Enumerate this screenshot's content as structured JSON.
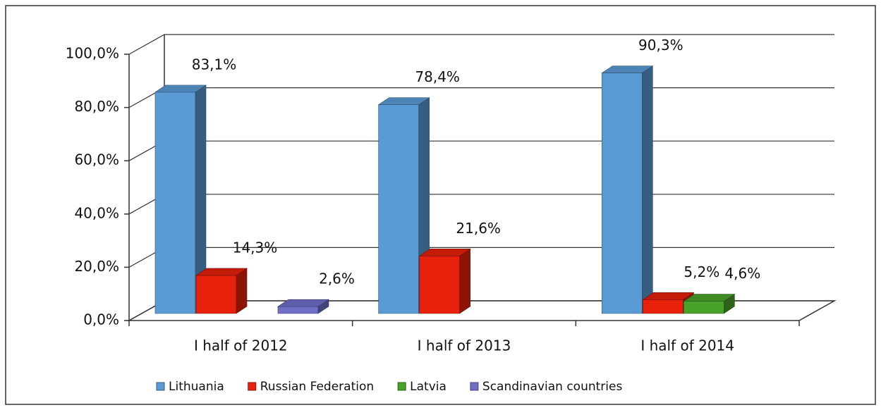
{
  "chart_data": {
    "type": "bar3d",
    "categories": [
      "I half of 2012",
      "I half of 2013",
      "I half of 2014"
    ],
    "series": [
      {
        "name": "Lithuania",
        "color": "#5b9bd5",
        "values": [
          83.1,
          78.4,
          90.3
        ],
        "value_labels": [
          "83,1%",
          "78,4%",
          "90,3%"
        ]
      },
      {
        "name": "Russian Federation",
        "color": "#e8210c",
        "values": [
          14.3,
          21.6,
          5.2
        ],
        "value_labels": [
          "14,3%",
          "21,6%",
          "5,2%"
        ]
      },
      {
        "name": "Latvia",
        "color": "#4aa329",
        "values": [
          null,
          null,
          4.6
        ],
        "value_labels": [
          null,
          null,
          "4,6%"
        ]
      },
      {
        "name": "Scandinavian countries",
        "color": "#6f6fc8",
        "values": [
          2.6,
          null,
          null
        ],
        "value_labels": [
          "2,6%",
          null,
          null
        ]
      }
    ],
    "ylim": [
      0,
      100
    ],
    "yticks": [
      {
        "value": 0,
        "label": "0,0%"
      },
      {
        "value": 20,
        "label": "20,0%"
      },
      {
        "value": 40,
        "label": "40,0%"
      },
      {
        "value": 60,
        "label": "60,0%"
      },
      {
        "value": 80,
        "label": "80,0%"
      },
      {
        "value": 100,
        "label": "100,0%"
      }
    ],
    "grid": true,
    "legend": "bottom"
  }
}
